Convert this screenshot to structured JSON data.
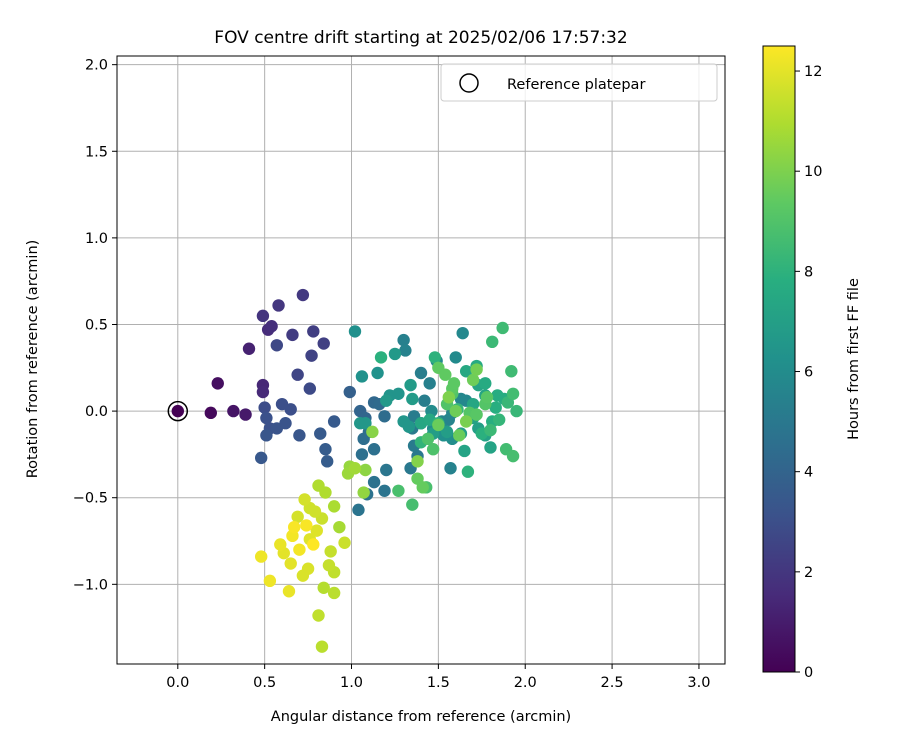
{
  "chart_data": {
    "type": "scatter",
    "title": "FOV centre drift starting at 2025/02/06 17:57:32",
    "xlabel": "Angular distance from reference (arcmin)",
    "ylabel": "Rotation from reference (arcmin)",
    "xlim": [
      -0.35,
      3.15
    ],
    "ylim": [
      -1.46,
      2.05
    ],
    "xticks": [
      "0.0",
      "0.5",
      "1.0",
      "1.5",
      "2.0",
      "2.5",
      "3.0"
    ],
    "yticks": [
      "−1.0",
      "−0.5",
      "0.0",
      "0.5",
      "1.0",
      "1.5",
      "2.0"
    ],
    "grid": true,
    "legend": {
      "location": "top-right",
      "entries": [
        "Reference platepar"
      ]
    },
    "reference_point": {
      "x": 0.0,
      "y": 0.0,
      "label": "Reference platepar"
    },
    "colorbar": {
      "label": "Hours from first FF file",
      "colormap": "viridis",
      "range": [
        0,
        12.5
      ],
      "ticks": [
        "0",
        "2",
        "4",
        "6",
        "8",
        "10",
        "12"
      ]
    },
    "series": [
      {
        "color_by": "hours",
        "points": [
          {
            "x": 0.0,
            "y": 0.0,
            "h": 0.0
          },
          {
            "x": 0.19,
            "y": -0.01,
            "h": 0.3
          },
          {
            "x": 0.23,
            "y": 0.16,
            "h": 0.5
          },
          {
            "x": 0.32,
            "y": 0.0,
            "h": 0.7
          },
          {
            "x": 0.39,
            "y": -0.02,
            "h": 0.9
          },
          {
            "x": 0.41,
            "y": 0.36,
            "h": 1.2
          },
          {
            "x": 0.49,
            "y": 0.15,
            "h": 1.4
          },
          {
            "x": 0.49,
            "y": 0.11,
            "h": 1.5
          },
          {
            "x": 0.52,
            "y": 0.47,
            "h": 1.6
          },
          {
            "x": 0.54,
            "y": 0.49,
            "h": 1.7
          },
          {
            "x": 0.49,
            "y": 0.55,
            "h": 1.9
          },
          {
            "x": 0.58,
            "y": 0.61,
            "h": 2.0
          },
          {
            "x": 0.72,
            "y": 0.67,
            "h": 2.1
          },
          {
            "x": 0.66,
            "y": 0.44,
            "h": 2.2
          },
          {
            "x": 0.78,
            "y": 0.46,
            "h": 2.3
          },
          {
            "x": 0.84,
            "y": 0.39,
            "h": 2.4
          },
          {
            "x": 0.77,
            "y": 0.32,
            "h": 2.5
          },
          {
            "x": 0.69,
            "y": 0.21,
            "h": 2.6
          },
          {
            "x": 0.57,
            "y": 0.38,
            "h": 2.7
          },
          {
            "x": 0.76,
            "y": 0.13,
            "h": 2.8
          },
          {
            "x": 0.5,
            "y": 0.02,
            "h": 2.9
          },
          {
            "x": 0.6,
            "y": 0.04,
            "h": 3.0
          },
          {
            "x": 0.65,
            "y": 0.01,
            "h": 3.0
          },
          {
            "x": 0.51,
            "y": -0.04,
            "h": 3.1
          },
          {
            "x": 0.53,
            "y": -0.1,
            "h": 3.1
          },
          {
            "x": 0.57,
            "y": -0.1,
            "h": 3.2
          },
          {
            "x": 0.62,
            "y": -0.07,
            "h": 3.2
          },
          {
            "x": 0.51,
            "y": -0.14,
            "h": 3.3
          },
          {
            "x": 0.7,
            "y": -0.14,
            "h": 3.3
          },
          {
            "x": 0.48,
            "y": -0.27,
            "h": 3.4
          },
          {
            "x": 0.82,
            "y": -0.13,
            "h": 3.5
          },
          {
            "x": 0.9,
            "y": -0.06,
            "h": 3.5
          },
          {
            "x": 0.85,
            "y": -0.22,
            "h": 3.6
          },
          {
            "x": 0.86,
            "y": -0.29,
            "h": 3.6
          },
          {
            "x": 0.99,
            "y": 0.11,
            "h": 3.8
          },
          {
            "x": 1.05,
            "y": 0.0,
            "h": 4.0
          },
          {
            "x": 1.08,
            "y": -0.04,
            "h": 4.1
          },
          {
            "x": 1.13,
            "y": 0.05,
            "h": 4.2
          },
          {
            "x": 1.16,
            "y": 0.04,
            "h": 4.3
          },
          {
            "x": 1.19,
            "y": -0.03,
            "h": 4.4
          },
          {
            "x": 1.1,
            "y": -0.12,
            "h": 4.5
          },
          {
            "x": 1.07,
            "y": -0.16,
            "h": 4.5
          },
          {
            "x": 1.13,
            "y": -0.22,
            "h": 4.6
          },
          {
            "x": 1.06,
            "y": -0.25,
            "h": 4.6
          },
          {
            "x": 1.13,
            "y": -0.41,
            "h": 4.7
          },
          {
            "x": 1.09,
            "y": -0.48,
            "h": 4.7
          },
          {
            "x": 1.04,
            "y": -0.57,
            "h": 4.8
          },
          {
            "x": 1.19,
            "y": -0.46,
            "h": 4.8
          },
          {
            "x": 1.2,
            "y": -0.34,
            "h": 4.9
          },
          {
            "x": 1.34,
            "y": -0.33,
            "h": 5.0
          },
          {
            "x": 1.38,
            "y": -0.26,
            "h": 5.0
          },
          {
            "x": 1.36,
            "y": -0.2,
            "h": 5.1
          },
          {
            "x": 1.35,
            "y": -0.1,
            "h": 5.1
          },
          {
            "x": 1.4,
            "y": -0.07,
            "h": 5.2
          },
          {
            "x": 1.36,
            "y": -0.03,
            "h": 5.2
          },
          {
            "x": 1.42,
            "y": 0.06,
            "h": 5.3
          },
          {
            "x": 1.4,
            "y": 0.22,
            "h": 5.3
          },
          {
            "x": 1.45,
            "y": 0.16,
            "h": 5.4
          },
          {
            "x": 1.3,
            "y": 0.41,
            "h": 5.4
          },
          {
            "x": 1.31,
            "y": 0.35,
            "h": 5.5
          },
          {
            "x": 1.57,
            "y": -0.33,
            "h": 5.5
          },
          {
            "x": 1.52,
            "y": -0.06,
            "h": 5.6
          },
          {
            "x": 1.56,
            "y": -0.05,
            "h": 5.6
          },
          {
            "x": 1.58,
            "y": -0.01,
            "h": 5.7
          },
          {
            "x": 1.63,
            "y": 0.07,
            "h": 5.7
          },
          {
            "x": 1.66,
            "y": 0.06,
            "h": 5.8
          },
          {
            "x": 1.64,
            "y": 0.45,
            "h": 5.8
          },
          {
            "x": 1.49,
            "y": 0.29,
            "h": 5.9
          },
          {
            "x": 1.6,
            "y": 0.31,
            "h": 5.9
          },
          {
            "x": 1.46,
            "y": 0.0,
            "h": 6.0
          },
          {
            "x": 1.52,
            "y": -0.1,
            "h": 6.0
          },
          {
            "x": 1.58,
            "y": -0.16,
            "h": 6.1
          },
          {
            "x": 1.47,
            "y": -0.1,
            "h": 6.1
          },
          {
            "x": 1.53,
            "y": -0.14,
            "h": 6.2
          },
          {
            "x": 1.02,
            "y": 0.46,
            "h": 6.2
          },
          {
            "x": 1.06,
            "y": 0.2,
            "h": 6.3
          },
          {
            "x": 1.15,
            "y": 0.22,
            "h": 6.3
          },
          {
            "x": 1.22,
            "y": 0.09,
            "h": 6.4
          },
          {
            "x": 1.27,
            "y": 0.1,
            "h": 6.4
          },
          {
            "x": 1.3,
            "y": -0.06,
            "h": 6.5
          },
          {
            "x": 1.33,
            "y": -0.09,
            "h": 6.5
          },
          {
            "x": 1.05,
            "y": -0.07,
            "h": 6.6
          },
          {
            "x": 1.08,
            "y": -0.07,
            "h": 6.6
          },
          {
            "x": 1.2,
            "y": 0.06,
            "h": 6.7
          },
          {
            "x": 1.25,
            "y": 0.33,
            "h": 6.7
          },
          {
            "x": 1.34,
            "y": 0.15,
            "h": 6.8
          },
          {
            "x": 1.35,
            "y": 0.07,
            "h": 6.8
          },
          {
            "x": 1.47,
            "y": -0.13,
            "h": 6.9
          },
          {
            "x": 1.55,
            "y": -0.12,
            "h": 6.9
          },
          {
            "x": 1.63,
            "y": -0.13,
            "h": 7.0
          },
          {
            "x": 1.73,
            "y": -0.1,
            "h": 7.0
          },
          {
            "x": 1.77,
            "y": -0.14,
            "h": 7.1
          },
          {
            "x": 1.7,
            "y": -0.04,
            "h": 7.1
          },
          {
            "x": 1.65,
            "y": -0.23,
            "h": 7.2
          },
          {
            "x": 1.8,
            "y": -0.21,
            "h": 7.2
          },
          {
            "x": 1.73,
            "y": 0.15,
            "h": 7.3
          },
          {
            "x": 1.77,
            "y": 0.09,
            "h": 7.3
          },
          {
            "x": 1.7,
            "y": 0.04,
            "h": 7.4
          },
          {
            "x": 1.4,
            "y": -0.07,
            "h": 7.4
          },
          {
            "x": 1.45,
            "y": -0.05,
            "h": 7.5
          },
          {
            "x": 1.66,
            "y": 0.23,
            "h": 7.5
          },
          {
            "x": 1.72,
            "y": 0.26,
            "h": 7.6
          },
          {
            "x": 1.77,
            "y": 0.16,
            "h": 7.6
          },
          {
            "x": 1.84,
            "y": 0.09,
            "h": 7.7
          },
          {
            "x": 1.88,
            "y": 0.07,
            "h": 7.7
          },
          {
            "x": 1.81,
            "y": -0.06,
            "h": 7.8
          },
          {
            "x": 1.83,
            "y": 0.02,
            "h": 7.8
          },
          {
            "x": 1.75,
            "y": -0.13,
            "h": 7.9
          },
          {
            "x": 1.17,
            "y": 0.31,
            "h": 7.9
          },
          {
            "x": 1.48,
            "y": 0.31,
            "h": 8.0
          },
          {
            "x": 1.67,
            "y": -0.35,
            "h": 8.0
          },
          {
            "x": 1.4,
            "y": -0.18,
            "h": 8.1
          },
          {
            "x": 1.5,
            "y": -0.07,
            "h": 8.1
          },
          {
            "x": 1.61,
            "y": 0.01,
            "h": 8.2
          },
          {
            "x": 1.85,
            "y": -0.05,
            "h": 8.2
          },
          {
            "x": 1.95,
            "y": 0.0,
            "h": 8.3
          },
          {
            "x": 1.9,
            "y": 0.05,
            "h": 8.3
          },
          {
            "x": 1.8,
            "y": -0.11,
            "h": 8.4
          },
          {
            "x": 1.81,
            "y": 0.4,
            "h": 8.4
          },
          {
            "x": 1.87,
            "y": 0.48,
            "h": 8.5
          },
          {
            "x": 1.92,
            "y": 0.23,
            "h": 8.5
          },
          {
            "x": 1.93,
            "y": 0.1,
            "h": 8.6
          },
          {
            "x": 1.89,
            "y": -0.22,
            "h": 8.6
          },
          {
            "x": 1.93,
            "y": -0.26,
            "h": 8.7
          },
          {
            "x": 1.35,
            "y": -0.54,
            "h": 8.7
          },
          {
            "x": 1.27,
            "y": -0.46,
            "h": 8.8
          },
          {
            "x": 1.43,
            "y": -0.44,
            "h": 8.8
          },
          {
            "x": 1.44,
            "y": -0.16,
            "h": 8.9
          },
          {
            "x": 1.47,
            "y": -0.22,
            "h": 8.9
          },
          {
            "x": 1.55,
            "y": 0.04,
            "h": 9.0
          },
          {
            "x": 1.58,
            "y": 0.1,
            "h": 9.0
          },
          {
            "x": 1.68,
            "y": -0.01,
            "h": 9.1
          },
          {
            "x": 1.77,
            "y": 0.04,
            "h": 9.1
          },
          {
            "x": 1.78,
            "y": 0.08,
            "h": 9.2
          },
          {
            "x": 1.72,
            "y": -0.02,
            "h": 9.2
          },
          {
            "x": 1.58,
            "y": 0.13,
            "h": 9.3
          },
          {
            "x": 1.59,
            "y": 0.16,
            "h": 9.3
          },
          {
            "x": 1.5,
            "y": 0.25,
            "h": 9.4
          },
          {
            "x": 1.54,
            "y": 0.21,
            "h": 9.4
          },
          {
            "x": 1.38,
            "y": -0.39,
            "h": 9.5
          },
          {
            "x": 1.41,
            "y": -0.44,
            "h": 9.5
          },
          {
            "x": 1.5,
            "y": -0.08,
            "h": 9.6
          },
          {
            "x": 1.62,
            "y": -0.14,
            "h": 9.6
          },
          {
            "x": 1.6,
            "y": 0.0,
            "h": 9.7
          },
          {
            "x": 1.7,
            "y": 0.18,
            "h": 9.7
          },
          {
            "x": 1.72,
            "y": 0.24,
            "h": 9.8
          },
          {
            "x": 1.66,
            "y": -0.06,
            "h": 9.9
          },
          {
            "x": 1.56,
            "y": 0.08,
            "h": 10.0
          },
          {
            "x": 1.38,
            "y": -0.29,
            "h": 10.1
          },
          {
            "x": 1.12,
            "y": -0.12,
            "h": 10.2
          },
          {
            "x": 1.08,
            "y": -0.34,
            "h": 10.3
          },
          {
            "x": 1.07,
            "y": -0.47,
            "h": 10.4
          },
          {
            "x": 0.99,
            "y": -0.32,
            "h": 10.5
          },
          {
            "x": 0.98,
            "y": -0.36,
            "h": 10.6
          },
          {
            "x": 1.02,
            "y": -0.33,
            "h": 10.7
          },
          {
            "x": 0.93,
            "y": -0.67,
            "h": 10.8
          },
          {
            "x": 0.9,
            "y": -0.55,
            "h": 10.9
          },
          {
            "x": 0.85,
            "y": -0.47,
            "h": 11.0
          },
          {
            "x": 0.81,
            "y": -0.43,
            "h": 11.0
          },
          {
            "x": 0.84,
            "y": -1.02,
            "h": 11.1
          },
          {
            "x": 0.9,
            "y": -1.05,
            "h": 11.2
          },
          {
            "x": 0.83,
            "y": -1.36,
            "h": 11.2
          },
          {
            "x": 0.81,
            "y": -1.18,
            "h": 11.3
          },
          {
            "x": 0.9,
            "y": -0.93,
            "h": 11.3
          },
          {
            "x": 0.87,
            "y": -0.89,
            "h": 11.4
          },
          {
            "x": 0.88,
            "y": -0.81,
            "h": 11.4
          },
          {
            "x": 0.96,
            "y": -0.76,
            "h": 11.5
          },
          {
            "x": 0.83,
            "y": -0.62,
            "h": 11.5
          },
          {
            "x": 0.79,
            "y": -0.58,
            "h": 11.6
          },
          {
            "x": 0.76,
            "y": -0.56,
            "h": 11.6
          },
          {
            "x": 0.73,
            "y": -0.51,
            "h": 11.7
          },
          {
            "x": 0.69,
            "y": -0.61,
            "h": 11.7
          },
          {
            "x": 0.72,
            "y": -0.95,
            "h": 11.8
          },
          {
            "x": 0.75,
            "y": -0.91,
            "h": 11.8
          },
          {
            "x": 0.76,
            "y": -0.74,
            "h": 11.9
          },
          {
            "x": 0.8,
            "y": -0.69,
            "h": 11.9
          },
          {
            "x": 0.65,
            "y": -0.88,
            "h": 12.0
          },
          {
            "x": 0.61,
            "y": -0.82,
            "h": 12.0
          },
          {
            "x": 0.59,
            "y": -0.77,
            "h": 12.1
          },
          {
            "x": 0.64,
            "y": -1.04,
            "h": 12.1
          },
          {
            "x": 0.48,
            "y": -0.84,
            "h": 12.2
          },
          {
            "x": 0.53,
            "y": -0.98,
            "h": 12.2
          },
          {
            "x": 0.66,
            "y": -0.72,
            "h": 12.3
          },
          {
            "x": 0.7,
            "y": -0.8,
            "h": 12.3
          },
          {
            "x": 0.74,
            "y": -0.66,
            "h": 12.4
          },
          {
            "x": 0.67,
            "y": -0.67,
            "h": 12.4
          },
          {
            "x": 0.78,
            "y": -0.77,
            "h": 12.5
          }
        ]
      }
    ]
  }
}
